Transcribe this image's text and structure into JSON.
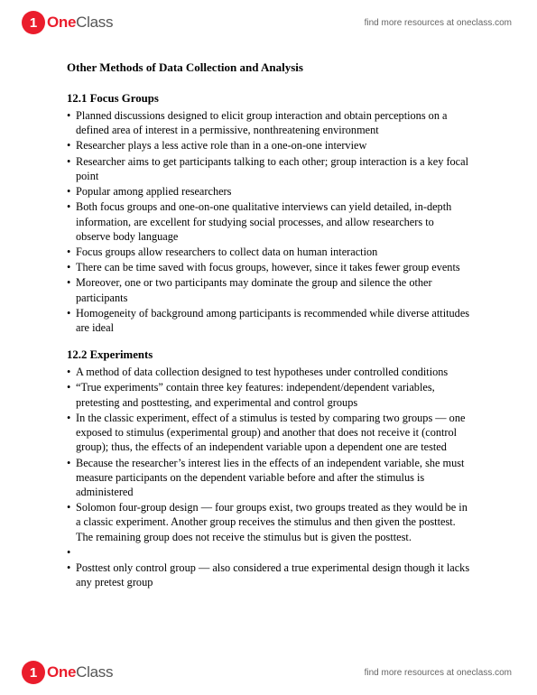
{
  "header": {
    "logo_letter": "1",
    "logo_one": "One",
    "logo_class": "Class",
    "link": "find more resources at oneclass.com"
  },
  "title": "Other Methods of Data Collection and Analysis",
  "sections": [
    {
      "heading": "12.1 Focus Groups",
      "bullets": [
        "Planned discussions designed to elicit group interaction and obtain perceptions on a defined area of interest in a permissive, nonthreatening environment",
        "Researcher plays a less active role than in a one-on-one interview",
        "Researcher aims to get participants talking to each other; group interaction is a key focal point",
        "Popular among applied researchers",
        "Both focus groups and one-on-one qualitative interviews can yield detailed, in-depth information, are excellent for studying social processes, and allow researchers to observe body language",
        "Focus groups allow researchers to collect data on human interaction",
        "There can be time saved with focus groups, however, since it takes fewer group events",
        "Moreover, one or two participants may dominate the group and silence the other participants",
        "Homogeneity of background among participants is recommended while diverse attitudes are ideal"
      ]
    },
    {
      "heading": "12.2 Experiments",
      "bullets": [
        "A method of data collection designed to test hypotheses under controlled conditions",
        "“True experiments” contain three key features: independent/dependent variables, pretesting and posttesting, and experimental and control groups",
        "In the classic experiment, effect of a stimulus is tested by comparing two groups — one exposed to stimulus (experimental group) and another that does not receive it (control group); thus, the effects of an independent variable upon a dependent one are tested",
        "Because the researcher’s interest lies in the effects of an independent variable, she must measure participants on the dependent variable before and after the stimulus is administered",
        "Solomon four-group design — four groups exist, two groups treated as they would be in a classic experiment. Another group receives the stimulus and then given the posttest. The remaining group does not receive the stimulus but is given the posttest.",
        "",
        "Posttest only control group — also considered a true experimental design though it lacks any pretest group"
      ]
    }
  ],
  "footer": {
    "link": "find more resources at oneclass.com"
  }
}
